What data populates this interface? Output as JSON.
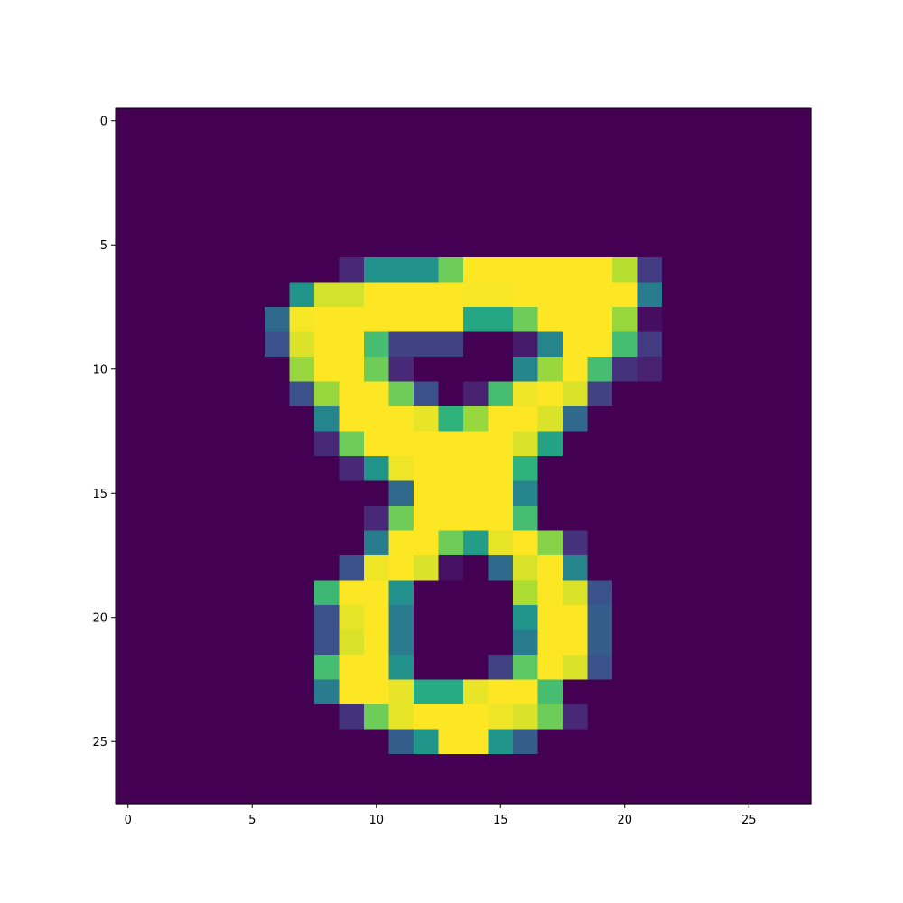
{
  "chart_data": {
    "type": "heatmap",
    "colormap": "viridis",
    "value_range": [
      0,
      1
    ],
    "rows": 28,
    "cols": 28,
    "xlim": [
      -0.5,
      27.5
    ],
    "ylim": [
      27.5,
      -0.5
    ],
    "xticks": [
      0,
      5,
      10,
      15,
      20,
      25
    ],
    "yticks": [
      0,
      5,
      10,
      15,
      20,
      25
    ],
    "xlabel": "",
    "ylabel": "",
    "title": "",
    "grid": false,
    "nonzero_cells": [
      [
        6,
        9,
        0.12
      ],
      [
        6,
        10,
        0.5
      ],
      [
        6,
        11,
        0.5
      ],
      [
        6,
        12,
        0.5
      ],
      [
        6,
        13,
        0.78
      ],
      [
        6,
        14,
        1.0
      ],
      [
        6,
        15,
        1.0
      ],
      [
        6,
        16,
        1.0
      ],
      [
        6,
        17,
        1.0
      ],
      [
        6,
        18,
        1.0
      ],
      [
        6,
        19,
        1.0
      ],
      [
        6,
        20,
        0.9
      ],
      [
        6,
        21,
        0.18
      ],
      [
        7,
        7,
        0.52
      ],
      [
        7,
        8,
        0.94
      ],
      [
        7,
        9,
        0.94
      ],
      [
        7,
        10,
        1.0
      ],
      [
        7,
        11,
        1.0
      ],
      [
        7,
        12,
        1.0
      ],
      [
        7,
        13,
        1.0
      ],
      [
        7,
        14,
        0.99
      ],
      [
        7,
        15,
        0.99
      ],
      [
        7,
        16,
        1.0
      ],
      [
        7,
        17,
        1.0
      ],
      [
        7,
        18,
        1.0
      ],
      [
        7,
        19,
        1.0
      ],
      [
        7,
        20,
        1.0
      ],
      [
        7,
        21,
        0.42
      ],
      [
        8,
        6,
        0.35
      ],
      [
        8,
        7,
        0.99
      ],
      [
        8,
        8,
        1.0
      ],
      [
        8,
        9,
        1.0
      ],
      [
        8,
        10,
        1.0
      ],
      [
        8,
        11,
        1.0
      ],
      [
        8,
        12,
        1.0
      ],
      [
        8,
        13,
        1.0
      ],
      [
        8,
        14,
        0.6
      ],
      [
        8,
        15,
        0.6
      ],
      [
        8,
        16,
        0.78
      ],
      [
        8,
        17,
        1.0
      ],
      [
        8,
        18,
        1.0
      ],
      [
        8,
        19,
        1.0
      ],
      [
        8,
        20,
        0.85
      ],
      [
        8,
        21,
        0.04
      ],
      [
        9,
        6,
        0.25
      ],
      [
        9,
        7,
        0.95
      ],
      [
        9,
        8,
        1.0
      ],
      [
        9,
        9,
        1.0
      ],
      [
        9,
        10,
        0.7
      ],
      [
        9,
        11,
        0.2
      ],
      [
        9,
        12,
        0.2
      ],
      [
        9,
        13,
        0.2
      ],
      [
        9,
        16,
        0.08
      ],
      [
        9,
        17,
        0.45
      ],
      [
        9,
        18,
        1.0
      ],
      [
        9,
        19,
        1.0
      ],
      [
        9,
        20,
        0.7
      ],
      [
        9,
        21,
        0.18
      ],
      [
        10,
        7,
        0.85
      ],
      [
        10,
        8,
        1.0
      ],
      [
        10,
        9,
        1.0
      ],
      [
        10,
        10,
        0.78
      ],
      [
        10,
        11,
        0.12
      ],
      [
        10,
        16,
        0.45
      ],
      [
        10,
        17,
        0.85
      ],
      [
        10,
        18,
        1.0
      ],
      [
        10,
        19,
        0.7
      ],
      [
        10,
        20,
        0.15
      ],
      [
        10,
        21,
        0.1
      ],
      [
        11,
        7,
        0.25
      ],
      [
        11,
        8,
        0.85
      ],
      [
        11,
        9,
        1.0
      ],
      [
        11,
        10,
        1.0
      ],
      [
        11,
        11,
        0.78
      ],
      [
        11,
        12,
        0.25
      ],
      [
        11,
        14,
        0.1
      ],
      [
        11,
        15,
        0.7
      ],
      [
        11,
        16,
        0.98
      ],
      [
        11,
        17,
        1.0
      ],
      [
        11,
        18,
        0.95
      ],
      [
        11,
        19,
        0.2
      ],
      [
        12,
        8,
        0.45
      ],
      [
        12,
        9,
        1.0
      ],
      [
        12,
        10,
        1.0
      ],
      [
        12,
        11,
        1.0
      ],
      [
        12,
        12,
        0.97
      ],
      [
        12,
        13,
        0.65
      ],
      [
        12,
        14,
        0.85
      ],
      [
        12,
        15,
        1.0
      ],
      [
        12,
        16,
        1.0
      ],
      [
        12,
        17,
        0.95
      ],
      [
        12,
        18,
        0.35
      ],
      [
        13,
        8,
        0.12
      ],
      [
        13,
        9,
        0.78
      ],
      [
        13,
        10,
        1.0
      ],
      [
        13,
        11,
        1.0
      ],
      [
        13,
        12,
        1.0
      ],
      [
        13,
        13,
        1.0
      ],
      [
        13,
        14,
        1.0
      ],
      [
        13,
        15,
        1.0
      ],
      [
        13,
        16,
        0.95
      ],
      [
        13,
        17,
        0.58
      ],
      [
        14,
        9,
        0.12
      ],
      [
        14,
        10,
        0.52
      ],
      [
        14,
        11,
        0.98
      ],
      [
        14,
        12,
        1.0
      ],
      [
        14,
        13,
        1.0
      ],
      [
        14,
        14,
        1.0
      ],
      [
        14,
        15,
        1.0
      ],
      [
        14,
        16,
        0.65
      ],
      [
        15,
        11,
        0.35
      ],
      [
        15,
        12,
        1.0
      ],
      [
        15,
        13,
        1.0
      ],
      [
        15,
        14,
        1.0
      ],
      [
        15,
        15,
        1.0
      ],
      [
        15,
        16,
        0.45
      ],
      [
        16,
        10,
        0.12
      ],
      [
        16,
        11,
        0.78
      ],
      [
        16,
        12,
        1.0
      ],
      [
        16,
        13,
        1.0
      ],
      [
        16,
        14,
        1.0
      ],
      [
        16,
        15,
        1.0
      ],
      [
        16,
        16,
        0.7
      ],
      [
        17,
        10,
        0.42
      ],
      [
        17,
        11,
        1.0
      ],
      [
        17,
        12,
        1.0
      ],
      [
        17,
        13,
        0.78
      ],
      [
        17,
        14,
        0.55
      ],
      [
        17,
        15,
        0.97
      ],
      [
        17,
        16,
        1.0
      ],
      [
        17,
        17,
        0.82
      ],
      [
        17,
        18,
        0.15
      ],
      [
        18,
        9,
        0.25
      ],
      [
        18,
        10,
        0.98
      ],
      [
        18,
        11,
        1.0
      ],
      [
        18,
        12,
        0.95
      ],
      [
        18,
        13,
        0.05
      ],
      [
        18,
        15,
        0.35
      ],
      [
        18,
        16,
        0.95
      ],
      [
        18,
        17,
        1.0
      ],
      [
        18,
        18,
        0.45
      ],
      [
        19,
        8,
        0.68
      ],
      [
        19,
        9,
        1.0
      ],
      [
        19,
        10,
        1.0
      ],
      [
        19,
        11,
        0.5
      ],
      [
        19,
        16,
        0.88
      ],
      [
        19,
        17,
        1.0
      ],
      [
        19,
        18,
        0.95
      ],
      [
        19,
        19,
        0.25
      ],
      [
        20,
        8,
        0.25
      ],
      [
        20,
        9,
        0.97
      ],
      [
        20,
        10,
        1.0
      ],
      [
        20,
        11,
        0.42
      ],
      [
        20,
        16,
        0.52
      ],
      [
        20,
        17,
        1.0
      ],
      [
        20,
        18,
        1.0
      ],
      [
        20,
        19,
        0.3
      ],
      [
        21,
        8,
        0.25
      ],
      [
        21,
        9,
        0.95
      ],
      [
        21,
        10,
        1.0
      ],
      [
        21,
        11,
        0.42
      ],
      [
        21,
        16,
        0.42
      ],
      [
        21,
        17,
        1.0
      ],
      [
        21,
        18,
        1.0
      ],
      [
        21,
        19,
        0.3
      ],
      [
        22,
        8,
        0.7
      ],
      [
        22,
        9,
        1.0
      ],
      [
        22,
        10,
        1.0
      ],
      [
        22,
        11,
        0.5
      ],
      [
        22,
        15,
        0.2
      ],
      [
        22,
        16,
        0.75
      ],
      [
        22,
        17,
        1.0
      ],
      [
        22,
        18,
        0.95
      ],
      [
        22,
        19,
        0.25
      ],
      [
        23,
        8,
        0.42
      ],
      [
        23,
        9,
        1.0
      ],
      [
        23,
        10,
        1.0
      ],
      [
        23,
        11,
        0.97
      ],
      [
        23,
        12,
        0.62
      ],
      [
        23,
        13,
        0.62
      ],
      [
        23,
        14,
        0.97
      ],
      [
        23,
        15,
        1.0
      ],
      [
        23,
        16,
        1.0
      ],
      [
        23,
        17,
        0.7
      ],
      [
        24,
        9,
        0.15
      ],
      [
        24,
        10,
        0.78
      ],
      [
        24,
        11,
        0.97
      ],
      [
        24,
        12,
        1.0
      ],
      [
        24,
        13,
        1.0
      ],
      [
        24,
        14,
        1.0
      ],
      [
        24,
        15,
        0.98
      ],
      [
        24,
        16,
        0.95
      ],
      [
        24,
        17,
        0.78
      ],
      [
        24,
        18,
        0.12
      ],
      [
        25,
        11,
        0.3
      ],
      [
        25,
        12,
        0.52
      ],
      [
        25,
        13,
        1.0
      ],
      [
        25,
        14,
        1.0
      ],
      [
        25,
        15,
        0.52
      ],
      [
        25,
        16,
        0.3
      ]
    ]
  }
}
